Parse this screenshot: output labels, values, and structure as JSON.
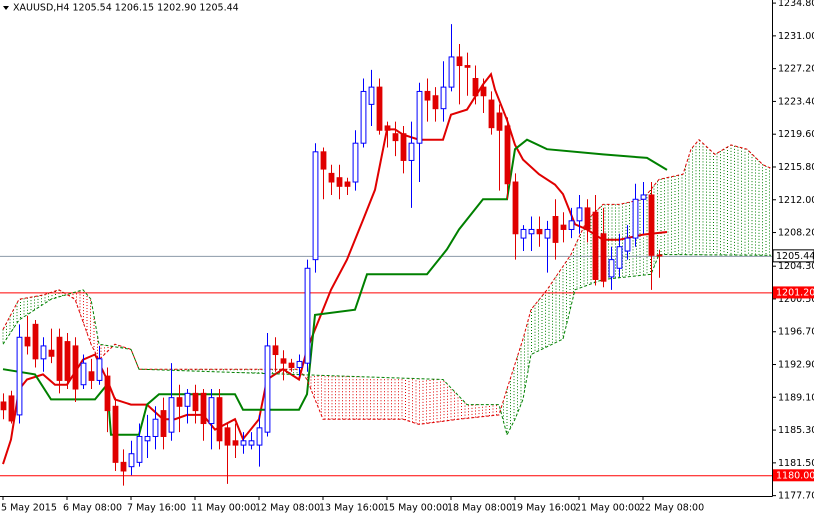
{
  "chart_data": {
    "type": "candlestick",
    "title": "XAUUSD,H4  1205.54 1206.15 1202.90 1205.44",
    "x": [
      0,
      1,
      2,
      3,
      4,
      5,
      6,
      7,
      8,
      9,
      10,
      11,
      12,
      13,
      14,
      15,
      16,
      17,
      18,
      19,
      20,
      21,
      22,
      23,
      24,
      25,
      26,
      27,
      28,
      29,
      30,
      31,
      32,
      33,
      34,
      35,
      36,
      37,
      38,
      39,
      40,
      41,
      42,
      43,
      44,
      45,
      46,
      47,
      48,
      49,
      50,
      51,
      52,
      53,
      54,
      55,
      56,
      57,
      58,
      59,
      60,
      61,
      62,
      63,
      64,
      65,
      66,
      67,
      68,
      69,
      70,
      71,
      72,
      73,
      74,
      75,
      76,
      77,
      78,
      79,
      80,
      81,
      82
    ],
    "open": [
      1188.5,
      1189.2,
      1187,
      1196,
      1197.5,
      1193.5,
      1194.5,
      1196,
      1195.5,
      1195,
      1190.5,
      1192,
      1191,
      1191.5,
      1188,
      1181.5,
      1181,
      1181.5,
      1184,
      1184.5,
      1187.5,
      1185,
      1189,
      1188,
      1189.5,
      1189.5,
      1186,
      1189,
      1185.5,
      1184,
      1183.5,
      1183.5,
      1183.5,
      1185,
      1195,
      1193.5,
      1193,
      1192.5,
      1193,
      1205,
      1217.5,
      1215,
      1214.5,
      1214,
      1214,
      1218.5,
      1223,
      1225,
      1220.5,
      1219.6,
      1219.6,
      1216.5,
      1218.5,
      1224.5,
      1224,
      1222.5,
      1225,
      1228.5,
      1227.5,
      1226,
      1225,
      1223.5,
      1222,
      1220.5,
      1214,
      1207.5,
      1208,
      1208.5,
      1207.5,
      1210,
      1209,
      1208.5,
      1209.5,
      1211,
      1210.5,
      1208,
      1203,
      1204,
      1206,
      1207.5,
      1212,
      1212.5,
      1205.54
    ],
    "high": [
      1189.5,
      1189.8,
      1197.5,
      1198.5,
      1198,
      1196,
      1197,
      1197,
      1196.5,
      1196,
      1194,
      1193.5,
      1195,
      1192.5,
      1189,
      1183,
      1184,
      1186,
      1187,
      1188,
      1189,
      1193,
      1190.5,
      1190,
      1190.5,
      1190,
      1190,
      1190,
      1186,
      1186,
      1185,
      1185,
      1187,
      1196.5,
      1196,
      1194.5,
      1193.5,
      1194,
      1205,
      1218.5,
      1218,
      1216,
      1216,
      1214.5,
      1220,
      1226,
      1227,
      1226,
      1221,
      1221,
      1220.5,
      1221,
      1225.5,
      1226,
      1225,
      1228,
      1232.3,
      1230,
      1229,
      1227.5,
      1226,
      1224.5,
      1223,
      1221.5,
      1215,
      1209,
      1210,
      1210,
      1209.5,
      1212,
      1210.5,
      1211,
      1212.5,
      1212,
      1212.5,
      1211,
      1206.5,
      1208,
      1209,
      1213.8,
      1214,
      1214,
      1206.15
    ],
    "low": [
      1186.5,
      1186,
      1186,
      1194,
      1192.5,
      1192,
      1193,
      1189.5,
      1190,
      1188.5,
      1190,
      1190,
      1190.5,
      1185,
      1180.5,
      1178.8,
      1180,
      1181,
      1182,
      1183,
      1183,
      1184,
      1185,
      1186,
      1186,
      1184,
      1183,
      1183,
      1179,
      1182,
      1182.5,
      1183,
      1181,
      1184.5,
      1192,
      1191,
      1192,
      1191.5,
      1192,
      1203.5,
      1212,
      1212.5,
      1212,
      1212.5,
      1213,
      1218,
      1220.5,
      1219.5,
      1218,
      1217,
      1215,
      1211,
      1214,
      1221,
      1221,
      1221,
      1224.5,
      1223,
      1224,
      1223,
      1222,
      1219.5,
      1213,
      1212,
      1205,
      1206,
      1206,
      1206.5,
      1203.5,
      1205,
      1207,
      1207.5,
      1208,
      1207,
      1202,
      1201.8,
      1201.5,
      1203,
      1205,
      1206.5,
      1208,
      1201.5,
      1202.9
    ],
    "close": [
      1187.6,
      1186.3,
      1196,
      1195,
      1193.5,
      1195,
      1193.8,
      1191,
      1191,
      1190,
      1193,
      1191,
      1193.5,
      1187.5,
      1181.5,
      1180.5,
      1182.5,
      1184.5,
      1184.5,
      1186.5,
      1184.5,
      1189,
      1188,
      1189.5,
      1187.5,
      1186,
      1189,
      1184,
      1183.5,
      1183.5,
      1184,
      1184,
      1185.5,
      1195,
      1194,
      1193,
      1192.5,
      1193.2,
      1204,
      1217.5,
      1215.5,
      1214,
      1213.5,
      1213.5,
      1218.5,
      1224.5,
      1225,
      1220,
      1220,
      1218.8,
      1216.5,
      1218.5,
      1224.5,
      1223.5,
      1222.5,
      1225,
      1228.5,
      1227.5,
      1227.3,
      1224,
      1224,
      1220.3,
      1220,
      1213.8,
      1208,
      1208.5,
      1208.5,
      1208,
      1208.5,
      1207,
      1208.5,
      1209.5,
      1211,
      1208.5,
      1202.7,
      1202.5,
      1205,
      1206.5,
      1207.5,
      1212,
      1212.5,
      1205.5,
      1205.44
    ],
    "up_color": "#0000ff",
    "down_color": "#e00000",
    "lines": [
      {
        "color": "#e00000",
        "width": 2,
        "dash": false,
        "x": [
          0,
          1,
          2,
          3,
          5,
          6.5,
          8,
          10,
          11.5,
          13,
          14,
          16,
          18,
          20,
          21.5,
          23,
          25,
          26.5,
          29,
          30,
          32,
          33,
          35,
          37,
          38,
          41,
          43,
          44,
          45,
          46.5,
          48,
          49,
          50,
          52,
          55,
          56,
          58,
          60,
          61,
          61.5,
          63,
          64,
          65,
          67,
          69,
          70,
          71.5,
          73,
          75,
          77,
          80,
          83
        ],
        "values": [
          1181.3,
          1184.15,
          1189.95,
          1191.1,
          1191.7,
          1190.5,
          1190.5,
          1193.4,
          1194,
          1191.1,
          1188.8,
          1188.2,
          1188.2,
          1186.5,
          1186.5,
          1187,
          1187,
          1185.3,
          1186.5,
          1184.2,
          1186.5,
          1191.1,
          1192.3,
          1191.1,
          1194.6,
          1201.5,
          1205,
          1207.3,
          1209.6,
          1213.1,
          1220.1,
          1220.1,
          1219.5,
          1218.9,
          1218.9,
          1221.8,
          1222.4,
          1225.3,
          1226.5,
          1224.7,
          1221.2,
          1218.3,
          1216.6,
          1214.9,
          1213.7,
          1212.6,
          1209.1,
          1208.5,
          1207.3,
          1207.3,
          1207.9,
          1208.2
        ]
      },
      {
        "color": "#008000",
        "width": 2,
        "dash": false,
        "x": [
          0,
          4,
          6,
          11.5,
          13,
          13.5,
          17,
          18,
          19.5,
          29,
          30,
          37,
          38,
          39,
          44,
          45.5,
          53,
          55.5,
          57,
          60,
          63,
          64,
          65.5,
          68,
          75,
          80.5,
          83
        ],
        "values": [
          1192.3,
          1191.7,
          1188.8,
          1188.8,
          1190.5,
          1184.7,
          1184.7,
          1188.2,
          1189.4,
          1189.4,
          1187.6,
          1187.6,
          1189.4,
          1198.6,
          1199.2,
          1203.3,
          1203.3,
          1206.2,
          1208.5,
          1212,
          1212,
          1217.8,
          1218.9,
          1217.8,
          1217.2,
          1216.8,
          1215.4
        ]
      },
      {
        "color": "#e00000",
        "width": 1,
        "dash": true,
        "x": [
          0,
          2,
          5,
          7,
          9,
          11,
          12,
          14,
          16,
          17,
          37,
          38,
          40,
          50,
          52,
          57,
          62,
          63,
          65,
          66,
          68,
          71,
          73,
          75,
          77,
          80,
          82,
          85,
          86,
          87,
          89,
          91,
          93,
          95,
          96
        ],
        "values": [
          1196.9,
          1200.4,
          1200.9,
          1201.5,
          1200.4,
          1195.2,
          1193.4,
          1195.2,
          1194.6,
          1192.3,
          1192.3,
          1191.1,
          1186.5,
          1186.5,
          1185.9,
          1186.5,
          1187,
          1190,
          1195.8,
          1199.2,
          1201.5,
          1205.6,
          1209.6,
          1211.4,
          1211.4,
          1212,
          1214.3,
          1214.9,
          1217.8,
          1218.9,
          1217.2,
          1218.3,
          1217.8,
          1216,
          1215.6
        ]
      },
      {
        "color": "#008000",
        "width": 1,
        "dash": true,
        "x": [
          0,
          2,
          6,
          10,
          11,
          12,
          16,
          17,
          55,
          58,
          62,
          63,
          64,
          65,
          66,
          70,
          71.5,
          75,
          81,
          82,
          96
        ],
        "values": [
          1195.2,
          1198,
          1200.4,
          1201.5,
          1200.4,
          1195.2,
          1194.6,
          1192.3,
          1191.1,
          1188.2,
          1188.2,
          1184.7,
          1186.5,
          1188.8,
          1194,
          1195.8,
          1201.5,
          1202.7,
          1203.3,
          1205.6,
          1205.5
        ]
      }
    ],
    "cloud_up_color": "#008000",
    "cloud_down_color": "#e00000",
    "levels": [
      {
        "value": 1201.2,
        "label": "1201.20",
        "color": "#ff0000"
      },
      {
        "value": 1180,
        "label": "1180.00",
        "color": "#ff0000"
      }
    ],
    "bid_color": "#8c9aa8",
    "xlim": [
      -0.375,
      96.125
    ],
    "ylim": [
      1177.6,
      1235.1
    ],
    "xticks": [
      {
        "value": 0,
        "label": "5 May 2015"
      },
      {
        "value": 8,
        "label": "6 May 08:00"
      },
      {
        "value": 16,
        "label": "7 May 16:00"
      },
      {
        "value": 24,
        "label": "11 May 00:00"
      },
      {
        "value": 32,
        "label": "12 May 08:00"
      },
      {
        "value": 40,
        "label": "13 May 16:00"
      },
      {
        "value": 48,
        "label": "15 May 00:00"
      },
      {
        "value": 56,
        "label": "18 May 08:00"
      },
      {
        "value": 64,
        "label": "19 May 16:00"
      },
      {
        "value": 72,
        "label": "21 May 00:00"
      },
      {
        "value": 80,
        "label": "22 May 08:00"
      }
    ],
    "yticks": [
      {
        "value": 1234.8,
        "label": "1234.80"
      },
      {
        "value": 1231,
        "label": "1231.00"
      },
      {
        "value": 1227.2,
        "label": "1227.20"
      },
      {
        "value": 1223.4,
        "label": "1223.40"
      },
      {
        "value": 1219.6,
        "label": "1219.60"
      },
      {
        "value": 1215.8,
        "label": "1215.80"
      },
      {
        "value": 1212,
        "label": "1212.00"
      },
      {
        "value": 1208.2,
        "label": "1208.20"
      },
      {
        "value": 1204.3,
        "label": "1204.30"
      },
      {
        "value": 1200.5,
        "label": "1200.50"
      },
      {
        "value": 1196.7,
        "label": "1196.70"
      },
      {
        "value": 1192.9,
        "label": "1192.90"
      },
      {
        "value": 1189.1,
        "label": "1189.10"
      },
      {
        "value": 1185.3,
        "label": "1185.30"
      },
      {
        "value": 1181.5,
        "label": "1181.50"
      },
      {
        "value": 1177.7,
        "label": "1177.70"
      }
    ],
    "grid": false
  }
}
